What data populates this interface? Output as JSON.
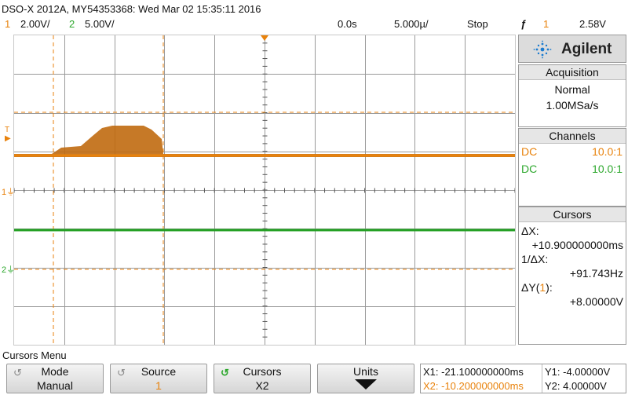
{
  "header": {
    "title": "DSO-X 2012A, MY54353368: Wed Mar 02 15:35:11 2016",
    "ch1_num": "1",
    "ch1_scale": "2.00V/",
    "ch2_num": "2",
    "ch2_scale": "5.00V/",
    "time_offset": "0.0s",
    "time_scale": "5.000µ/",
    "run_state": "Stop",
    "trigger_icon": "trigger-rising-edge-icon",
    "trigger_symbol": "ƒ",
    "trigger_ch": "1",
    "trigger_level": "2.58V"
  },
  "brand": {
    "name": "Agilent",
    "icon": "agilent-spark-icon"
  },
  "acquisition": {
    "title": "Acquisition",
    "mode": "Normal",
    "rate": "1.00MSa/s"
  },
  "channels": {
    "title": "Channels",
    "rows": [
      {
        "coupling": "DC",
        "probe": "10.0:1",
        "color": "#e8820c"
      },
      {
        "coupling": "DC",
        "probe": "10.0:1",
        "color": "#2ea82e"
      }
    ]
  },
  "cursors": {
    "title": "Cursors",
    "dx_label": "ΔX:",
    "dx_value": "+10.900000000ms",
    "inv_dx_label": "1/ΔX:",
    "inv_dx_value": "+91.743Hz",
    "dy_label_pre": "ΔY(",
    "dy_label_ch": "1",
    "dy_label_post": "):",
    "dy_value": "+8.00000V"
  },
  "markers": {
    "trigger_marker": "T",
    "ch1_marker": "1",
    "ch2_marker": "2"
  },
  "menu": {
    "title": "Cursors Menu",
    "softkeys": [
      {
        "label": "Mode",
        "value": "Manual"
      },
      {
        "label": "Source",
        "value": "1"
      },
      {
        "label": "Cursors",
        "value": "X2"
      },
      {
        "label": "Units",
        "value": ""
      }
    ]
  },
  "readout": {
    "x1": "X1: -21.100000000ms",
    "x2": "X2: -10.200000000ms",
    "y1": "Y1: -4.00000V",
    "y2": "Y2: 4.00000V"
  },
  "colors": {
    "ch1": "#e8820c",
    "ch2": "#2ea82e",
    "cursor": "#e8820c"
  }
}
